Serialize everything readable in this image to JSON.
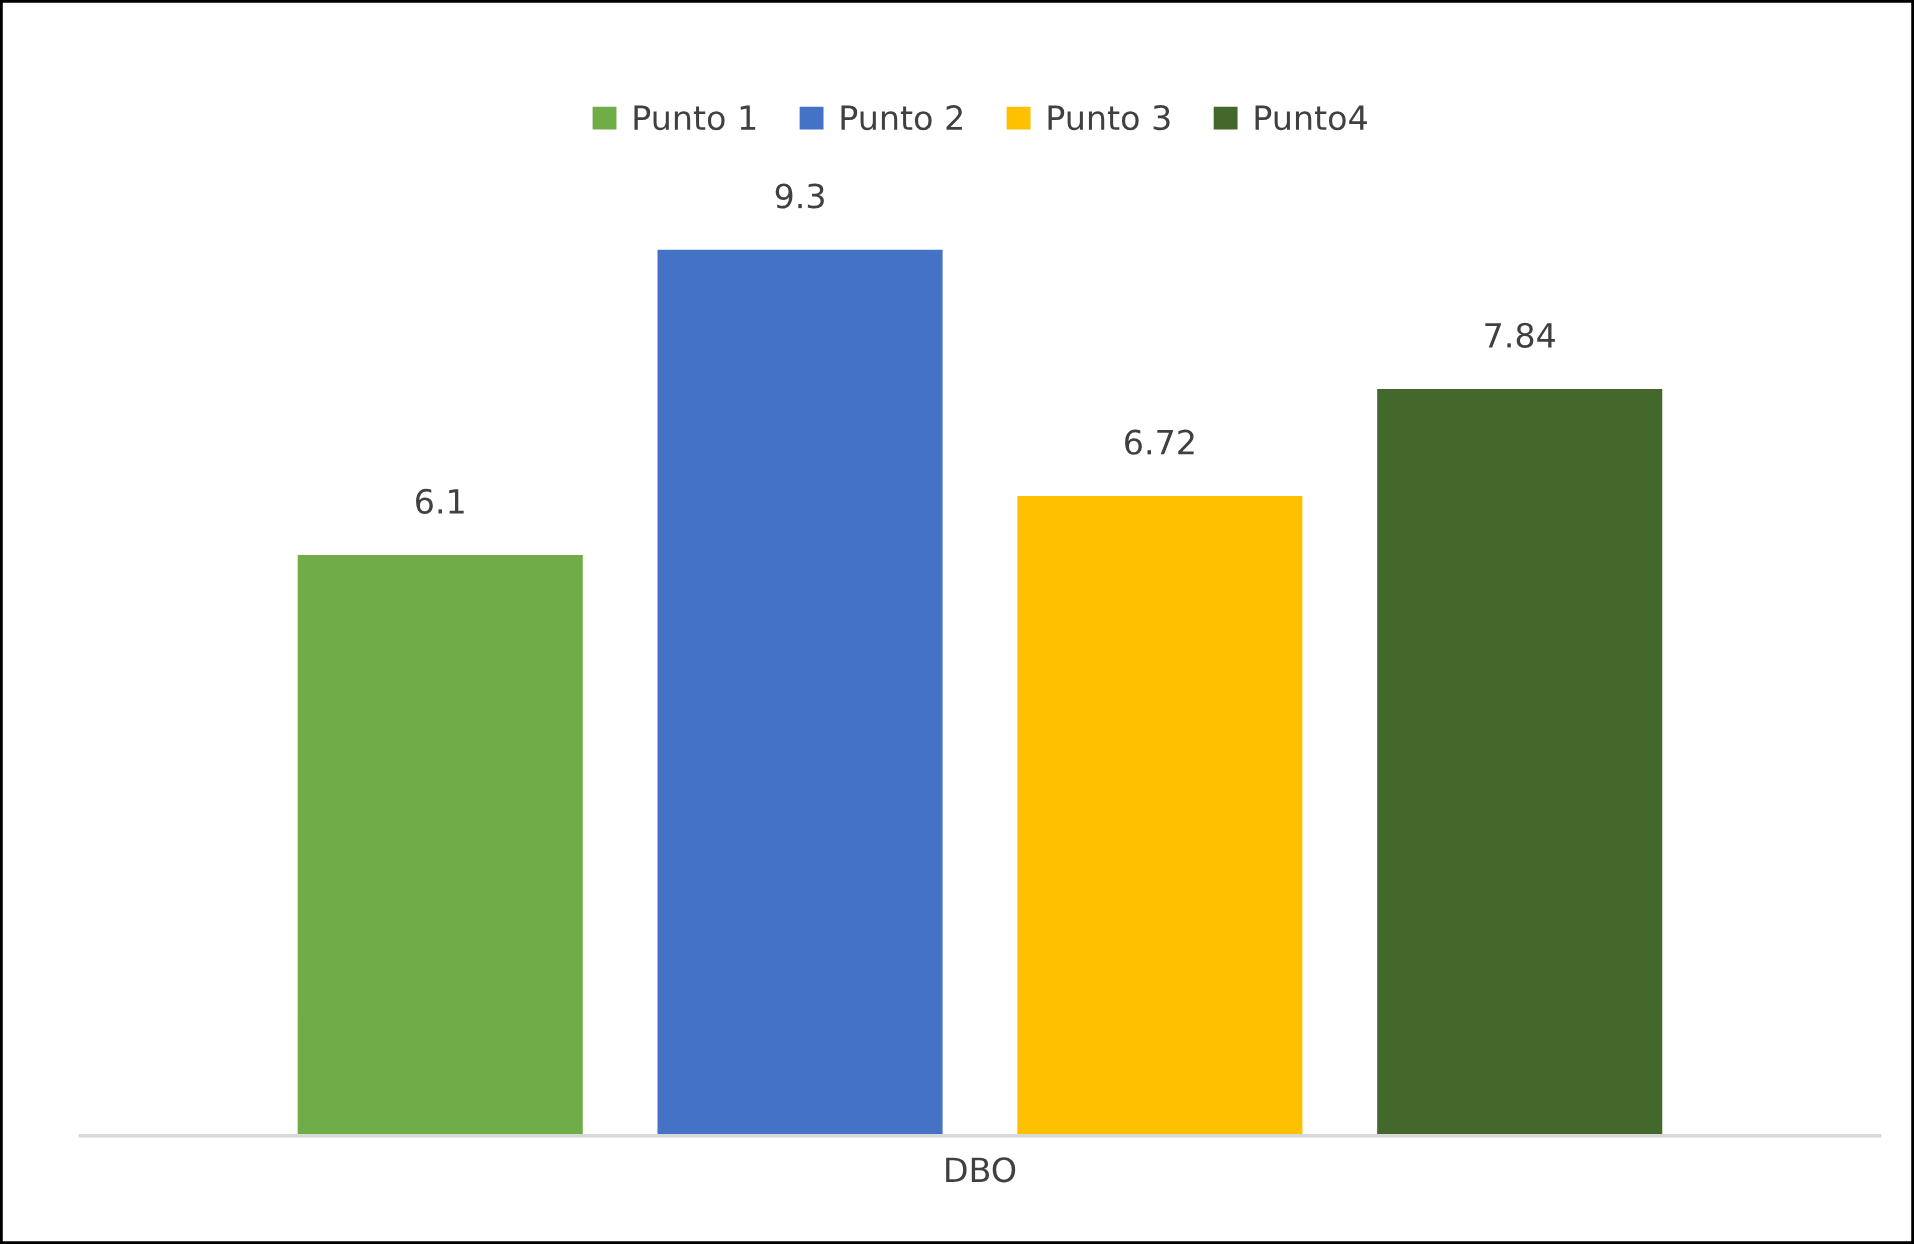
{
  "chart_data": {
    "type": "bar",
    "categories": [
      null,
      null,
      null,
      null
    ],
    "xlabel": "DBO",
    "series": [
      {
        "name": "Punto 1",
        "color": "#70ad47",
        "values": [
          6.1,
          null,
          null,
          null
        ]
      },
      {
        "name": "Punto 2",
        "color": "#4472c4",
        "values": [
          null,
          9.3,
          null,
          null
        ]
      },
      {
        "name": "Punto 3",
        "color": "#ffc000",
        "values": [
          null,
          null,
          6.72,
          null
        ]
      },
      {
        "name": "Punto4",
        "color": "#43682b",
        "values": [
          null,
          null,
          null,
          7.84
        ]
      }
    ],
    "stacked": true,
    "data_labels": true,
    "legend": "top",
    "grid": false
  }
}
